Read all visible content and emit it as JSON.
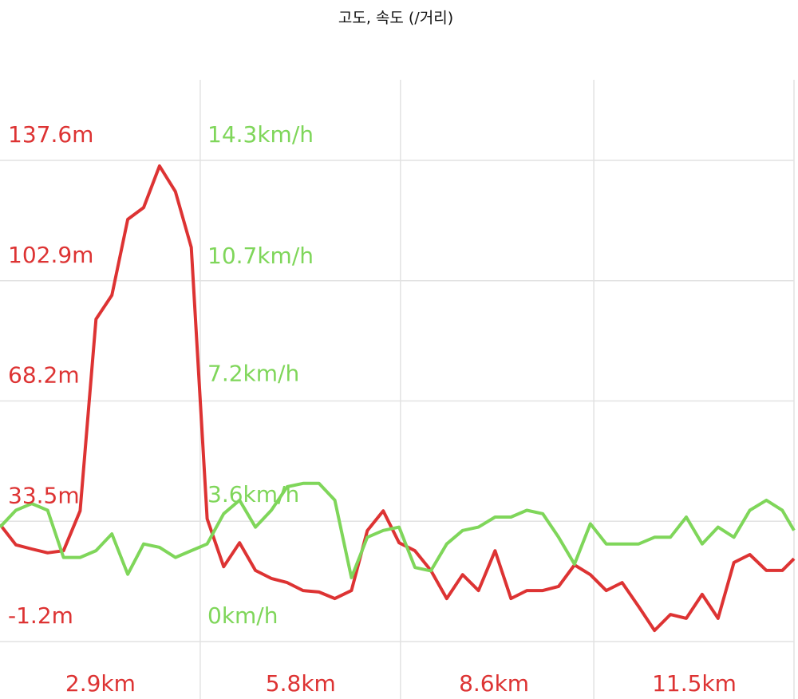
{
  "chart_data": {
    "type": "line",
    "title": "고도, 속도 (/거리)",
    "x": [
      0,
      0.23,
      0.46,
      0.69,
      0.92,
      1.16,
      1.39,
      1.62,
      1.85,
      2.08,
      2.31,
      2.54,
      2.77,
      3.0,
      3.24,
      3.47,
      3.7,
      3.93,
      4.16,
      4.39,
      4.62,
      4.85,
      5.09,
      5.32,
      5.55,
      5.78,
      6.01,
      6.24,
      6.47,
      6.7,
      6.93,
      7.17,
      7.4,
      7.63,
      7.86,
      8.09,
      8.32,
      8.55,
      8.78,
      9.01,
      9.25,
      9.48,
      9.71,
      9.94,
      10.17,
      10.4,
      10.63,
      10.86,
      11.1,
      11.33,
      11.5
    ],
    "series": [
      {
        "name": "고도",
        "color": "#dd3333",
        "values": [
          32.6,
          26.7,
          25.5,
          24.4,
          25.0,
          36.5,
          91.8,
          98.7,
          120.6,
          124.0,
          136.0,
          128.6,
          112.5,
          34.2,
          20.4,
          27.3,
          19.3,
          17.0,
          15.8,
          13.5,
          13.1,
          11.2,
          13.5,
          30.8,
          36.5,
          27.3,
          25.0,
          19.3,
          11.2,
          18.1,
          13.5,
          25.0,
          11.2,
          13.5,
          13.5,
          14.7,
          20.9,
          18.1,
          13.5,
          15.8,
          8.9,
          2.0,
          6.6,
          5.5,
          12.4,
          5.5,
          21.6,
          23.9,
          19.3,
          19.3,
          22.7
        ]
      },
      {
        "name": "속도",
        "color": "#7fd65a",
        "axis": "y2",
        "values": [
          3.4,
          3.9,
          4.1,
          3.9,
          2.5,
          2.5,
          2.7,
          3.2,
          2.0,
          2.9,
          2.8,
          2.5,
          2.7,
          2.9,
          3.8,
          4.2,
          3.4,
          3.9,
          4.6,
          4.7,
          4.7,
          4.2,
          1.9,
          3.1,
          3.3,
          3.4,
          2.2,
          2.1,
          2.9,
          3.3,
          3.4,
          3.7,
          3.7,
          3.9,
          3.8,
          3.1,
          2.3,
          3.5,
          2.9,
          2.9,
          2.9,
          3.1,
          3.1,
          3.7,
          2.9,
          3.4,
          3.1,
          3.9,
          4.2,
          3.9,
          3.3
        ]
      }
    ],
    "xlim": [
      0,
      11.5
    ],
    "xticks": [
      {
        "value": 2.9,
        "label": "2.9km"
      },
      {
        "value": 5.8,
        "label": "5.8km"
      },
      {
        "value": 8.6,
        "label": "8.6km"
      },
      {
        "value": 11.5,
        "label": "11.5km"
      }
    ],
    "ylim": [
      -1.2,
      137.6
    ],
    "yticks": [
      {
        "value": -1.2,
        "label": "-1.2m"
      },
      {
        "value": 33.5,
        "label": "33.5m"
      },
      {
        "value": 68.2,
        "label": "68.2m"
      },
      {
        "value": 102.9,
        "label": "102.9m"
      },
      {
        "value": 137.6,
        "label": "137.6m"
      }
    ],
    "y2lim": [
      0,
      14.3
    ],
    "y2ticks": [
      {
        "value": 0,
        "label": "0km/h"
      },
      {
        "value": 3.6,
        "label": "3.6km/h"
      },
      {
        "value": 7.2,
        "label": "7.2km/h"
      },
      {
        "value": 10.7,
        "label": "10.7km/h"
      },
      {
        "value": 14.3,
        "label": "14.3km/h"
      }
    ],
    "grid": true
  }
}
